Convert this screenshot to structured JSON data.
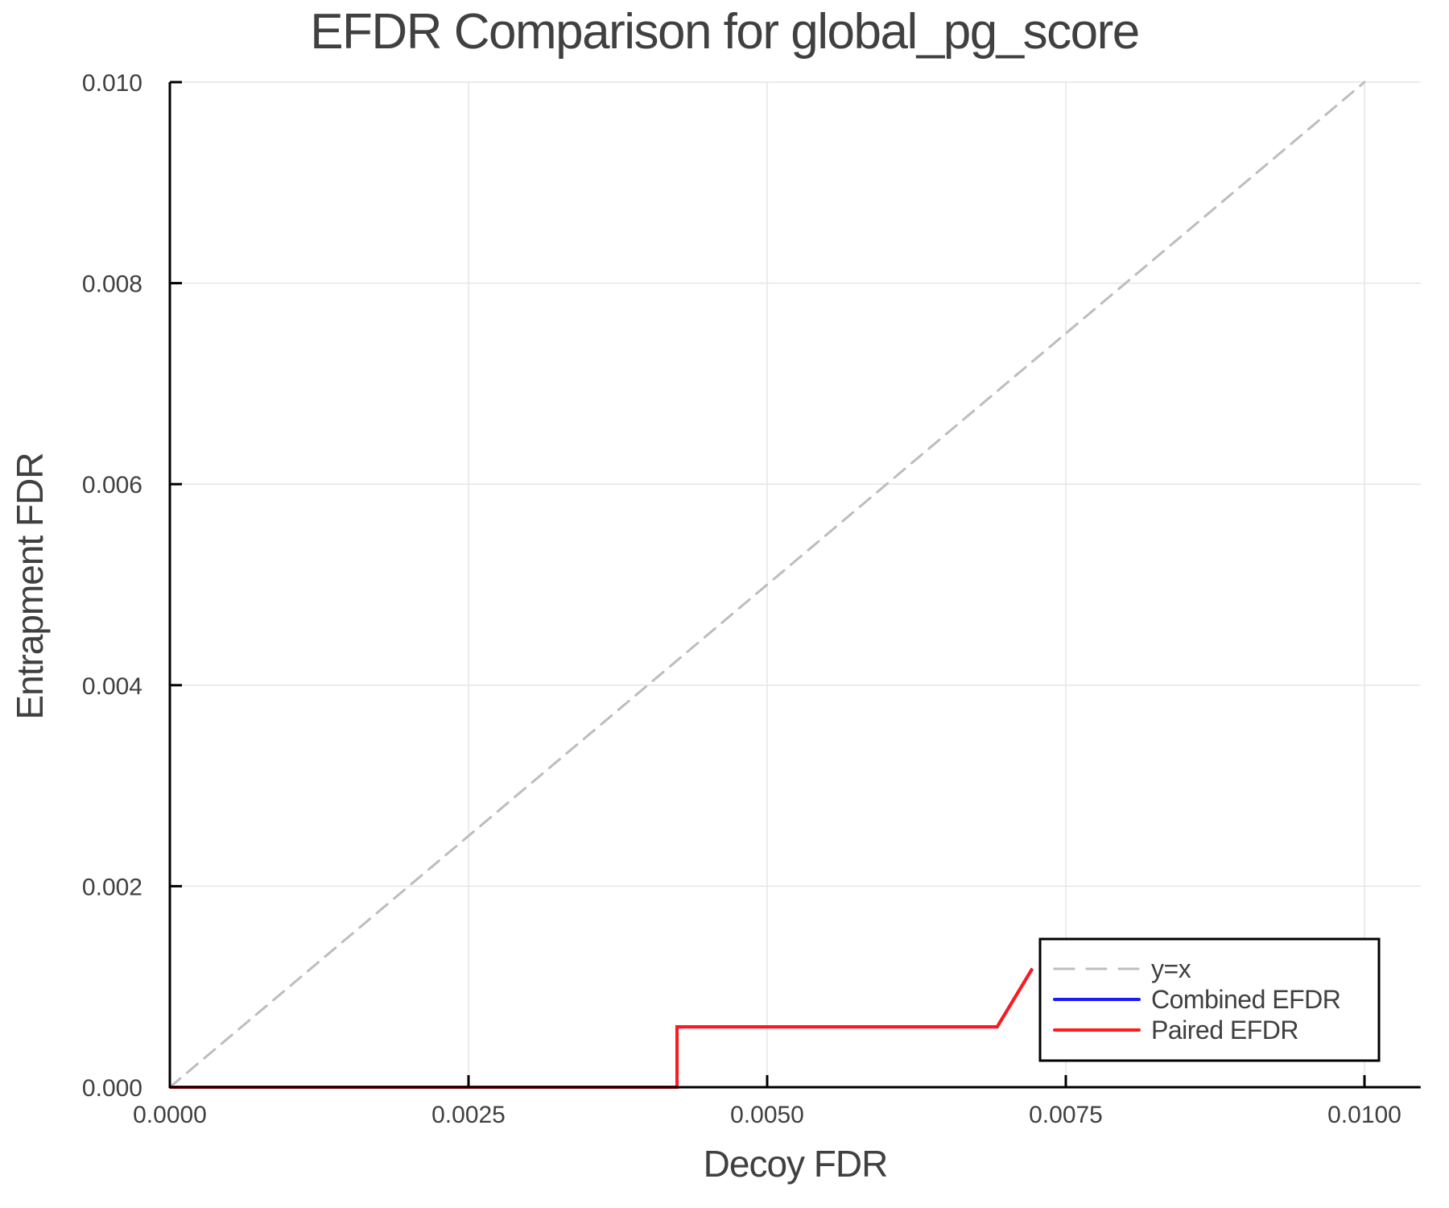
{
  "chart_data": {
    "type": "line",
    "title": "EFDR Comparison for global_pg_score",
    "xlabel": "Decoy FDR",
    "ylabel": "Entrapment FDR",
    "xlim": [
      0.0,
      0.01047
    ],
    "ylim": [
      0.0,
      0.01
    ],
    "grid": true,
    "legend_position": "bottom-right",
    "x_ticks": [
      "0.0000",
      "0.0025",
      "0.0050",
      "0.0075",
      "0.0100"
    ],
    "x_tick_values": [
      0.0,
      0.0025,
      0.005,
      0.0075,
      0.01
    ],
    "y_ticks": [
      "0.000",
      "0.002",
      "0.004",
      "0.006",
      "0.008",
      "0.010"
    ],
    "y_tick_values": [
      0.0,
      0.002,
      0.004,
      0.006,
      0.008,
      0.01
    ],
    "series": [
      {
        "name": "y=x",
        "color": "#bdbdbd",
        "style": "dashed",
        "x": [
          0.0,
          0.01
        ],
        "y": [
          0.0,
          0.01
        ]
      },
      {
        "name": "Combined EFDR",
        "color": "#1a1aff",
        "style": "solid",
        "x": [
          0.0,
          0.004245,
          0.004245,
          0.006925,
          0.00722
        ],
        "y": [
          0.0,
          0.0,
          0.0006,
          0.0006,
          0.00118
        ]
      },
      {
        "name": "Paired EFDR",
        "color": "#ff1a1a",
        "style": "solid",
        "x": [
          0.0,
          0.004245,
          0.004245,
          0.006925,
          0.00722
        ],
        "y": [
          0.0,
          0.0,
          0.0006,
          0.0006,
          0.00118
        ]
      }
    ]
  },
  "legend": {
    "items": [
      {
        "label": "y=x",
        "color": "#bdbdbd",
        "style": "dashed"
      },
      {
        "label": "Combined EFDR",
        "color": "#1a1aff",
        "style": "solid"
      },
      {
        "label": "Paired EFDR",
        "color": "#ff1a1a",
        "style": "solid"
      }
    ]
  }
}
